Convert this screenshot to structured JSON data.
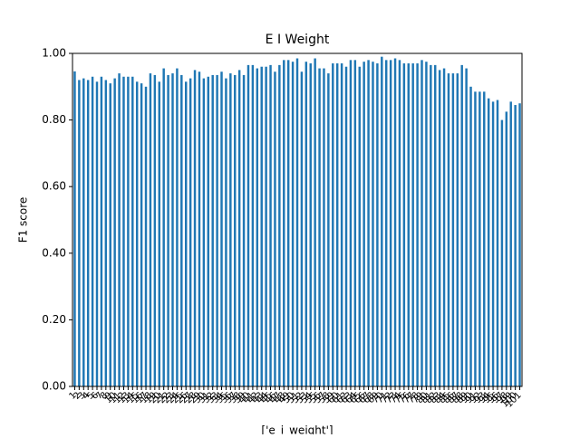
{
  "chart_data": {
    "type": "bar",
    "title": "E I Weight",
    "xlabel": "['e_i_weight']",
    "ylabel": "F1 score",
    "color": "#1f77b4",
    "categories": [
      "1",
      "2",
      "3",
      "4",
      "5",
      "6",
      "7",
      "8",
      "9",
      "10",
      "11",
      "12",
      "13",
      "14",
      "15",
      "16",
      "17",
      "18",
      "19",
      "20",
      "21",
      "22",
      "23",
      "24",
      "25",
      "26",
      "27",
      "28",
      "29",
      "30",
      "31",
      "32",
      "33",
      "34",
      "35",
      "36",
      "37",
      "38",
      "39",
      "40",
      "41",
      "42",
      "43",
      "44",
      "45",
      "46",
      "47",
      "48",
      "49",
      "50",
      "51",
      "52",
      "53",
      "54",
      "55",
      "56",
      "57",
      "58",
      "59",
      "60",
      "61",
      "62",
      "63",
      "64",
      "65",
      "66",
      "67",
      "68",
      "69",
      "70",
      "71",
      "72",
      "73",
      "74",
      "75",
      "76",
      "77",
      "78",
      "79",
      "80",
      "81",
      "82",
      "83",
      "84",
      "85",
      "86",
      "87",
      "88",
      "89",
      "90",
      "91",
      "92",
      "93",
      "94",
      "95",
      "96",
      "97",
      "98",
      "99",
      "100",
      "101"
    ],
    "values": [
      0.946,
      0.92,
      0.925,
      0.92,
      0.93,
      0.915,
      0.93,
      0.92,
      0.91,
      0.925,
      0.94,
      0.93,
      0.93,
      0.93,
      0.915,
      0.91,
      0.9,
      0.94,
      0.935,
      0.915,
      0.955,
      0.935,
      0.94,
      0.955,
      0.935,
      0.915,
      0.925,
      0.95,
      0.945,
      0.925,
      0.93,
      0.935,
      0.935,
      0.945,
      0.925,
      0.94,
      0.935,
      0.95,
      0.935,
      0.965,
      0.965,
      0.955,
      0.96,
      0.96,
      0.965,
      0.945,
      0.965,
      0.98,
      0.98,
      0.975,
      0.985,
      0.945,
      0.975,
      0.97,
      0.985,
      0.955,
      0.955,
      0.94,
      0.97,
      0.97,
      0.97,
      0.96,
      0.98,
      0.98,
      0.96,
      0.975,
      0.98,
      0.975,
      0.97,
      0.99,
      0.98,
      0.98,
      0.985,
      0.98,
      0.97,
      0.97,
      0.97,
      0.97,
      0.98,
      0.975,
      0.965,
      0.965,
      0.95,
      0.955,
      0.94,
      0.94,
      0.94,
      0.965,
      0.955,
      0.9,
      0.885,
      0.885,
      0.885,
      0.865,
      0.855,
      0.86,
      0.8,
      0.825,
      0.855,
      0.845,
      0.85
    ],
    "ylim": [
      0,
      1
    ],
    "yticks": [
      {
        "value": 0,
        "label": "0.00"
      },
      {
        "value": 0.2,
        "label": "0.20"
      },
      {
        "value": 0.4,
        "label": "0.40"
      },
      {
        "value": 0.6,
        "label": "0.60"
      },
      {
        "value": 0.8,
        "label": "0.80"
      },
      {
        "value": 1,
        "label": "1.00"
      }
    ]
  }
}
